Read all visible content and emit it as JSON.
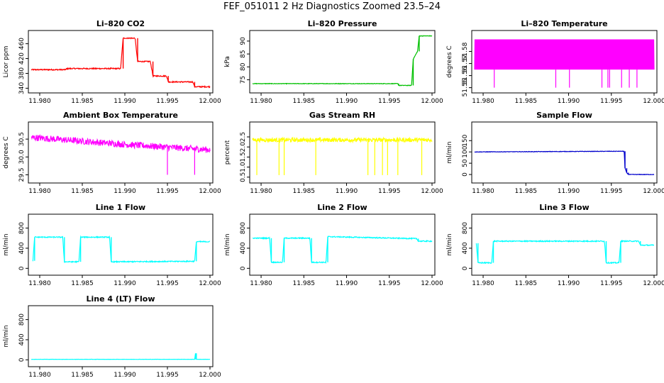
{
  "page": {
    "title": "FEF_051011  2 Hz Diagnostics Zoomed 23.5–24"
  },
  "chart_data": [
    {
      "type": "line",
      "title": "Li–820 CO2",
      "ylabel": "Licor ppm",
      "color": "#ff0000",
      "xlim": [
        11.979,
        12.0
      ],
      "ylim": [
        335,
        488
      ],
      "xticks": [
        11.98,
        11.985,
        11.99,
        11.995,
        12.0
      ],
      "xtick_labels": [
        "11.980",
        "11.985",
        "11.990",
        "11.995",
        "12.000"
      ],
      "yticks": [
        340,
        380,
        420,
        460
      ],
      "ytick_labels": [
        "340",
        "380",
        "420",
        "460"
      ],
      "noise": 1.5,
      "x": [
        11.979,
        11.983,
        11.9832,
        11.9895,
        11.9898,
        11.9912,
        11.9915,
        11.993,
        11.9933,
        11.9949,
        11.9951,
        11.998,
        11.9982,
        12.0
      ],
      "y": [
        390,
        390,
        393,
        393,
        475,
        475,
        412,
        412,
        373,
        373,
        357,
        357,
        344,
        344
      ]
    },
    {
      "type": "line",
      "title": "Li–820 Pressure",
      "ylabel": "kPa",
      "color": "#00c000",
      "xlim": [
        11.979,
        12.0
      ],
      "ylim": [
        71,
        93
      ],
      "xticks": [
        11.98,
        11.985,
        11.99,
        11.995,
        12.0
      ],
      "xtick_labels": [
        "11.980",
        "11.985",
        "11.990",
        "11.995",
        "12.000"
      ],
      "yticks": [
        75,
        80,
        85,
        90
      ],
      "ytick_labels": [
        "75",
        "80",
        "85",
        "90"
      ],
      "noise": 0.1,
      "x": [
        11.979,
        11.996,
        11.9961,
        11.9976,
        11.9978,
        11.9983,
        11.9985,
        12.0
      ],
      "y": [
        73.5,
        73.5,
        72.8,
        72.8,
        83,
        86,
        92,
        92
      ]
    },
    {
      "type": "line",
      "title": "Li–820 Temperature",
      "ylabel": "degrees C",
      "color": "#ff00ff",
      "xlim": [
        11.979,
        12.0
      ],
      "ylim": [
        51.548,
        51.595
      ],
      "xticks": [
        11.98,
        11.985,
        11.99,
        11.995,
        12.0
      ],
      "xtick_labels": [
        "11.980",
        "11.985",
        "11.990",
        "11.995",
        "12.000"
      ],
      "yticks": [
        51.55,
        51.56,
        51.57,
        51.58
      ],
      "ytick_labels": [
        "51.55",
        "51.56",
        "51.57",
        "51.58"
      ],
      "noise": 0,
      "x": [
        11.979,
        12.0
      ],
      "y": [
        51.565,
        51.565
      ],
      "band": [
        51.565,
        51.59
      ],
      "spikes_down": [
        11.9813,
        11.9885,
        11.9901,
        11.9939,
        11.9946,
        11.9948,
        11.9962,
        11.9971,
        11.998
      ],
      "spike_low": 51.55
    },
    {
      "type": "line",
      "title": "Ambient Box Temperature",
      "ylabel": "degrees C",
      "color": "#ff00ff",
      "xlim": [
        11.979,
        12.0
      ],
      "ylim": [
        29.35,
        30.9
      ],
      "xticks": [
        11.98,
        11.985,
        11.99,
        11.995,
        12.0
      ],
      "xtick_labels": [
        "11.980",
        "11.985",
        "11.990",
        "11.995",
        "12.000"
      ],
      "yticks": [
        29.5,
        30.0,
        30.5
      ],
      "ytick_labels": [
        "29.5",
        "30.0",
        "30.5"
      ],
      "noise": 0.09,
      "x": [
        11.979,
        11.99,
        12.0
      ],
      "y": [
        30.55,
        30.35,
        30.2
      ],
      "spikes_down": [
        11.995,
        11.9982
      ],
      "spike_low": 29.5
    },
    {
      "type": "line",
      "title": "Gas Stream RH",
      "ylabel": "percent",
      "color": "#ffff00",
      "xlim": [
        11.979,
        12.0
      ],
      "ylim": [
        0.35,
        3.1
      ],
      "xticks": [
        11.98,
        11.985,
        11.99,
        11.995,
        12.0
      ],
      "xtick_labels": [
        "11.980",
        "11.985",
        "11.990",
        "11.995",
        "12.000"
      ],
      "yticks": [
        0.5,
        1.0,
        1.5,
        2.0,
        2.5
      ],
      "ytick_labels": [
        "0.5",
        "1.0",
        "1.5",
        "2.0",
        "2.5"
      ],
      "noise": 0.1,
      "x": [
        11.979,
        12.0
      ],
      "y": [
        2.35,
        2.35
      ],
      "spikes_down": [
        11.9795,
        11.9821,
        11.9827,
        11.9864,
        11.9925,
        11.9933,
        11.9942,
        11.9948,
        11.996,
        11.9988
      ],
      "spike_low": 0.6
    },
    {
      "type": "line",
      "title": "Sample Flow",
      "ylabel": "ml/min",
      "color": "#0000cc",
      "xlim": [
        11.979,
        12.0
      ],
      "ylim": [
        -25,
        220
      ],
      "xticks": [
        11.98,
        11.985,
        11.99,
        11.995,
        12.0
      ],
      "xtick_labels": [
        "11.980",
        "11.985",
        "11.990",
        "11.995",
        "12.000"
      ],
      "yticks": [
        0,
        50,
        100,
        150
      ],
      "ytick_labels": [
        "0",
        "50",
        "100",
        "150"
      ],
      "noise": 1,
      "x": [
        11.979,
        11.9965,
        11.9966,
        11.9968,
        11.997,
        12.0
      ],
      "y": [
        100,
        103,
        28,
        8,
        0,
        0
      ]
    },
    {
      "type": "line",
      "title": "Line 1 Flow",
      "ylabel": "ml/min",
      "color": "#00ffff",
      "xlim": [
        11.979,
        12.0
      ],
      "ylim": [
        -80,
        1020
      ],
      "xticks": [
        11.98,
        11.985,
        11.99,
        11.995,
        12.0
      ],
      "xtick_labels": [
        "11.980",
        "11.985",
        "11.990",
        "11.995",
        "12.000"
      ],
      "yticks": [
        0,
        400,
        800
      ],
      "ytick_labels": [
        "0",
        "400",
        "800"
      ],
      "noise": 10,
      "x": [
        11.9792,
        11.9794,
        11.9827,
        11.9829,
        11.9846,
        11.9848,
        11.9882,
        11.9884,
        11.9982,
        11.9984,
        12.0
      ],
      "y": [
        150,
        620,
        620,
        130,
        130,
        620,
        620,
        130,
        140,
        530,
        530
      ]
    },
    {
      "type": "line",
      "title": "Line 2 Flow",
      "ylabel": "ml/min",
      "color": "#00ffff",
      "xlim": [
        11.979,
        12.0
      ],
      "ylim": [
        -80,
        1020
      ],
      "xticks": [
        11.98,
        11.985,
        11.99,
        11.995,
        12.0
      ],
      "xtick_labels": [
        "11.980",
        "11.985",
        "11.990",
        "11.995",
        "12.000"
      ],
      "yticks": [
        0,
        400,
        800
      ],
      "ytick_labels": [
        "0",
        "400",
        "800"
      ],
      "noise": 10,
      "x": [
        11.979,
        11.981,
        11.9812,
        11.9825,
        11.9827,
        11.9857,
        11.9859,
        11.9876,
        11.9878,
        11.9982,
        11.9984,
        12.0
      ],
      "y": [
        600,
        600,
        120,
        120,
        600,
        600,
        120,
        120,
        630,
        590,
        540,
        540
      ]
    },
    {
      "type": "line",
      "title": "Line 3 Flow",
      "ylabel": "ml/min",
      "color": "#00ffff",
      "xlim": [
        11.979,
        12.0
      ],
      "ylim": [
        -80,
        1020
      ],
      "xticks": [
        11.98,
        11.985,
        11.99,
        11.995,
        12.0
      ],
      "xtick_labels": [
        "11.980",
        "11.985",
        "11.990",
        "11.995",
        "12.000"
      ],
      "yticks": [
        0,
        400,
        800
      ],
      "ytick_labels": [
        "0",
        "400",
        "800"
      ],
      "noise": 10,
      "x": [
        11.9792,
        11.9794,
        11.981,
        11.9812,
        11.9942,
        11.9944,
        11.9959,
        11.9961,
        11.9982,
        11.9984,
        12.0
      ],
      "y": [
        500,
        110,
        110,
        540,
        540,
        110,
        110,
        540,
        540,
        460,
        460
      ]
    },
    {
      "type": "line",
      "title": "Line 4 (LT) Flow",
      "ylabel": "ml/min",
      "color": "#00ffff",
      "xlim": [
        11.979,
        12.0
      ],
      "ylim": [
        -80,
        1020
      ],
      "xticks": [
        11.98,
        11.985,
        11.99,
        11.995,
        12.0
      ],
      "xtick_labels": [
        "11.980",
        "11.985",
        "11.990",
        "11.995",
        "12.000"
      ],
      "yticks": [
        0,
        400,
        800
      ],
      "ytick_labels": [
        "0",
        "400",
        "800"
      ],
      "noise": 2,
      "x": [
        11.979,
        11.9982,
        11.9983,
        11.9984,
        12.0
      ],
      "y": [
        10,
        10,
        130,
        10,
        10
      ]
    }
  ]
}
